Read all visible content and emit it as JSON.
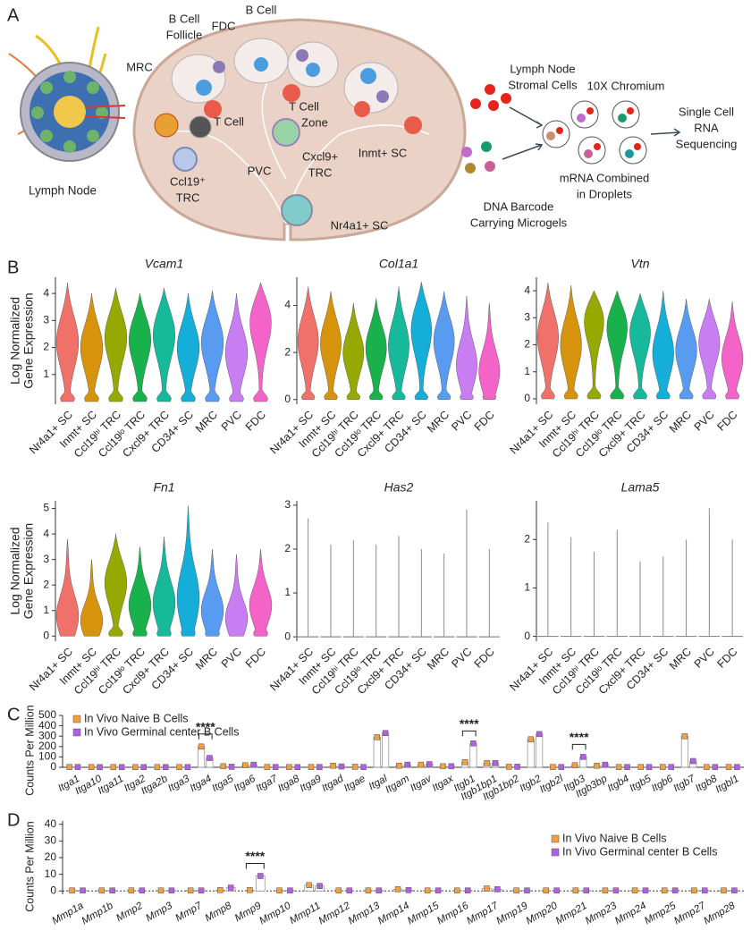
{
  "panels": [
    "A",
    "B",
    "C",
    "D"
  ],
  "diagram": {
    "lymph_node": "Lymph Node",
    "follicle": [
      "B Cell",
      "Follicle"
    ],
    "fdc": "FDC",
    "b_cell": "B Cell",
    "mrc": "MRC",
    "t_cell": "T Cell",
    "t_cell_zone": [
      "T Cell",
      "Zone"
    ],
    "cxcl9_trc": [
      "Cxcl9+",
      "TRC"
    ],
    "ccl19_trc": [
      "Ccl19⁺",
      "TRC"
    ],
    "pvc": "PVC",
    "inmt_sc": "Inmt+ SC",
    "nr4a1_sc": "Nr4a1+ SC",
    "stromal": [
      "Lymph Node",
      "Stromal Cells"
    ],
    "chromium": "10X Chromium",
    "sequencing": [
      "Single Cell",
      "RNA",
      "Sequencing"
    ],
    "barcode": [
      "DNA Barcode",
      "Carrying Microgels"
    ],
    "droplets": [
      "mRNA Combined",
      "in Droplets"
    ]
  },
  "chart_data": [
    {
      "type": "violin",
      "title": "Vcam1",
      "ylabel": [
        "Log Normalized",
        "Gene Expression"
      ],
      "categories": [
        "Nr4a1+ SC",
        "Inmt+ SC",
        "Ccl19ʰⁱ TRC",
        "Ccl19ˡᵒ TRC",
        "Cxcl9+ TRC",
        "CD34+ SC",
        "MRC",
        "PVC",
        "FDC"
      ],
      "colors": [
        "#f0706a",
        "#d8930c",
        "#95a900",
        "#19b14b",
        "#16b99a",
        "#14aed9",
        "#5a9bf2",
        "#c87df2",
        "#f464c8"
      ],
      "values": [
        2.2,
        2.0,
        2.4,
        2.3,
        2.5,
        2.0,
        2.2,
        1.8,
        3.0
      ],
      "max": [
        4.4,
        4.0,
        4.2,
        4.0,
        4.2,
        4.0,
        4.1,
        4.0,
        4.4
      ],
      "ylim": [
        -0.1,
        4.6
      ],
      "yticks": [
        1,
        2,
        3,
        4
      ]
    },
    {
      "type": "violin",
      "title": "Col1a1",
      "categories": [
        "Nr4a1+ SC",
        "Inmt+ SC",
        "Ccl19ʰⁱ TRC",
        "Ccl19ˡᵒ TRC",
        "Cxcl9+ TRC",
        "CD34+ SC",
        "MRC",
        "PVC",
        "FDC"
      ],
      "colors": [
        "#f0706a",
        "#d8930c",
        "#95a900",
        "#19b14b",
        "#16b99a",
        "#14aed9",
        "#5a9bf2",
        "#c87df2",
        "#f464c8"
      ],
      "values": [
        2.5,
        2.4,
        2.0,
        2.2,
        2.3,
        3.0,
        2.5,
        1.5,
        1.2
      ],
      "max": [
        4.8,
        4.6,
        4.1,
        4.3,
        4.8,
        5.0,
        4.6,
        4.4,
        4.1
      ],
      "ylim": [
        -0.2,
        5.2
      ],
      "yticks": [
        0,
        2,
        4
      ]
    },
    {
      "type": "violin",
      "title": "Vtn",
      "categories": [
        "Nr4a1+ SC",
        "Inmt+ SC",
        "Ccl19ʰⁱ TRC",
        "Ccl19ˡᵒ TRC",
        "Cxcl9+ TRC",
        "CD34+ SC",
        "MRC",
        "PVC",
        "FDC"
      ],
      "colors": [
        "#f0706a",
        "#d8930c",
        "#95a900",
        "#19b14b",
        "#16b99a",
        "#14aed9",
        "#5a9bf2",
        "#c87df2",
        "#f464c8"
      ],
      "values": [
        2.3,
        2.0,
        3.0,
        2.7,
        2.5,
        1.7,
        1.8,
        2.1,
        1.5
      ],
      "max": [
        4.3,
        4.2,
        4.0,
        4.0,
        3.9,
        4.0,
        3.7,
        3.7,
        3.6
      ],
      "ylim": [
        -0.2,
        4.5
      ],
      "yticks": [
        0,
        1,
        2,
        3,
        4
      ]
    },
    {
      "type": "violin",
      "title": "Fn1",
      "ylabel": [
        "Log Normalized",
        "Gene Expression"
      ],
      "categories": [
        "Nr4a1+ SC",
        "Inmt+ SC",
        "Ccl19ʰⁱ TRC",
        "Ccl19ˡᵒ TRC",
        "Cxcl9+ TRC",
        "CD34+ SC",
        "MRC",
        "PVC",
        "FDC"
      ],
      "colors": [
        "#f0706a",
        "#d8930c",
        "#95a900",
        "#19b14b",
        "#16b99a",
        "#14aed9",
        "#5a9bf2",
        "#c87df2",
        "#f464c8"
      ],
      "values": [
        0.8,
        0.6,
        2.1,
        1.2,
        1.3,
        1.5,
        1.0,
        0.7,
        1.2
      ],
      "max": [
        3.8,
        3.0,
        4.0,
        3.5,
        3.9,
        5.1,
        3.4,
        3.2,
        3.4
      ],
      "ylim": [
        -0.2,
        5.3
      ],
      "yticks": [
        0,
        1,
        2,
        3,
        4,
        5
      ]
    },
    {
      "type": "violin",
      "title": "Has2",
      "categories": [
        "Nr4a1+ SC",
        "Inmt+ SC",
        "Ccl19ʰⁱ TRC",
        "Ccl19ˡᵒ TRC",
        "Cxcl9+ TRC",
        "CD34+ SC",
        "MRC",
        "PVC",
        "FDC"
      ],
      "color": "#8a8a8a",
      "values": [
        0,
        0,
        0,
        0,
        0,
        0,
        0,
        0,
        0
      ],
      "max": [
        2.7,
        2.1,
        2.2,
        2.1,
        2.3,
        2.0,
        1.9,
        2.9,
        2.0
      ],
      "ylim": [
        -0.1,
        3.1
      ],
      "yticks": [
        0,
        1,
        2,
        3
      ]
    },
    {
      "type": "violin",
      "title": "Lama5",
      "categories": [
        "Nr4a1+ SC",
        "Inmt+ SC",
        "Ccl19ʰⁱ TRC",
        "Ccl19ˡᵒ TRC",
        "Cxcl9+ TRC",
        "CD34+ SC",
        "MRC",
        "PVC",
        "FDC"
      ],
      "color": "#8a8a8a",
      "values": [
        0,
        0,
        0,
        0,
        0,
        0,
        0,
        0,
        0
      ],
      "max": [
        2.35,
        2.05,
        1.75,
        2.2,
        1.55,
        1.65,
        2.0,
        2.65,
        2.0
      ],
      "ylim": [
        -0.1,
        2.8
      ],
      "yticks": [
        0,
        1,
        2
      ]
    },
    {
      "type": "bar",
      "ylabel": "Counts Per Million",
      "legend": "upper left",
      "categories": [
        "Itga1",
        "Itga10",
        "Itga11",
        "Itga2",
        "Itga2b",
        "Itga3",
        "Itga4",
        "Itga5",
        "Itga6",
        "Itga7",
        "Itga8",
        "Itga9",
        "Itgad",
        "Itgae",
        "Itgal",
        "Itgam",
        "Itgav",
        "Itgax",
        "Itgb1",
        "Itgb1bp1",
        "Itgb1bp2",
        "Itgb2",
        "Itgb2l",
        "Itgb3",
        "Itgb3bp",
        "Itgb4",
        "Itgb5",
        "Itgb6",
        "Itgb7",
        "Itgb8",
        "Itgbl1"
      ],
      "series": [
        {
          "name": "In Vivo Naive B Cells",
          "color": "#f0a040",
          "values": [
            3,
            2,
            2,
            2,
            2,
            2,
            200,
            10,
            20,
            3,
            2,
            3,
            15,
            5,
            290,
            15,
            25,
            10,
            50,
            40,
            5,
            270,
            3,
            20,
            15,
            3,
            3,
            3,
            300,
            3,
            3
          ]
        },
        {
          "name": "In Vivo Germinal center B Cells",
          "color": "#b060e0",
          "values": [
            3,
            2,
            2,
            2,
            2,
            2,
            90,
            5,
            25,
            3,
            2,
            3,
            8,
            3,
            330,
            25,
            30,
            10,
            230,
            40,
            5,
            320,
            3,
            100,
            25,
            3,
            3,
            3,
            60,
            3,
            3
          ]
        }
      ],
      "ylim": [
        0,
        500
      ],
      "yticks": [
        0,
        100,
        200,
        300,
        400,
        500
      ],
      "annotations": [
        {
          "text": "****",
          "category": "Itga4"
        },
        {
          "text": "****",
          "category": "Itgb1"
        },
        {
          "text": "****",
          "category": "Itgb3"
        }
      ]
    },
    {
      "type": "bar",
      "ylabel": "Counts Per Million",
      "legend": "upper right",
      "categories": [
        "Mmp1a",
        "Mmp1b",
        "Mmp2",
        "Mmp3",
        "Mmp7",
        "Mmp8",
        "Mmp9",
        "Mmp10",
        "Mmp11",
        "Mmp12",
        "Mmp13",
        "Mmp14",
        "Mmp15",
        "Mmp16",
        "Mmp17",
        "Mmp19",
        "Mmp20",
        "Mmp21",
        "Mmp23",
        "Mmp24",
        "Mmp25",
        "Mmp27",
        "Mmp28"
      ],
      "series": [
        {
          "name": "In Vivo Naive B Cells",
          "color": "#f0a040",
          "values": [
            0.3,
            0.3,
            0.3,
            0.3,
            0.3,
            0.5,
            0.5,
            0.3,
            3.5,
            0.3,
            0.3,
            1,
            0.3,
            0.3,
            1.5,
            0.3,
            0.3,
            0.3,
            0.3,
            0.3,
            0.3,
            0.3,
            0.3
          ]
        },
        {
          "name": "In Vivo Germinal center B Cells",
          "color": "#b060e0",
          "values": [
            0.3,
            0.3,
            0.3,
            0.3,
            0.3,
            2,
            9,
            0.3,
            3,
            0.3,
            0.3,
            0.5,
            0.3,
            0.3,
            1,
            0.3,
            0.3,
            0.3,
            0.3,
            0.3,
            0.3,
            0.3,
            0.3
          ]
        }
      ],
      "ylim": [
        -2,
        42
      ],
      "yticks": [
        0,
        10,
        20,
        30,
        40
      ],
      "annotations": [
        {
          "text": "****",
          "category": "Mmp9"
        }
      ]
    }
  ]
}
